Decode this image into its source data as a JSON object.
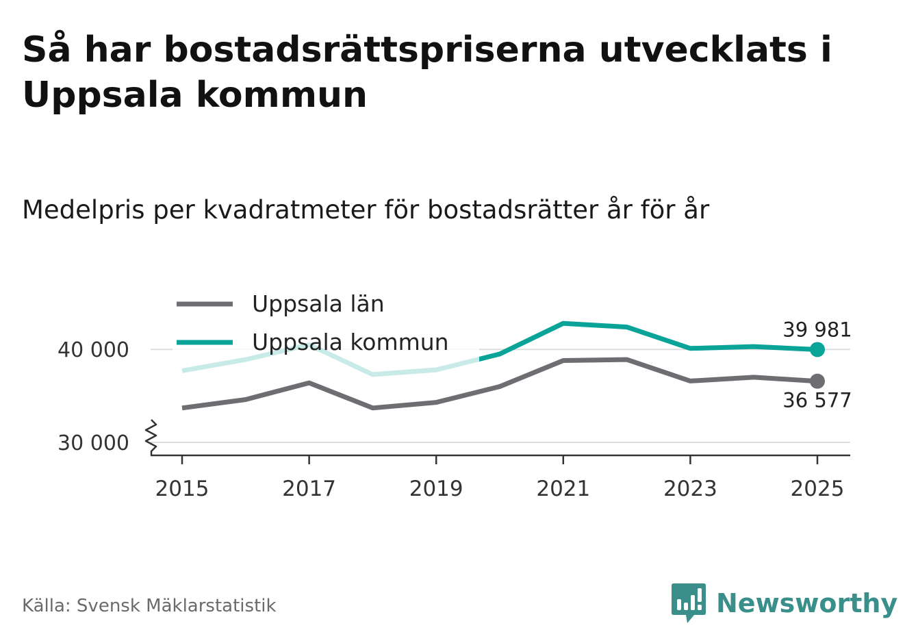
{
  "title": "Så har bostadsrättspriserna utvecklats i Uppsala kommun",
  "subtitle": "Medelpris per kvadratmeter för bostadsrätter år för år",
  "source": "Källa: Svensk Mäklarstatistik",
  "brand": {
    "name": "Newsworthy",
    "logo_icon": "bar-chart-speech-bubble-icon",
    "color": "#3a8f8b"
  },
  "chart_data": {
    "type": "line",
    "x": [
      2015,
      2016,
      2017,
      2018,
      2019,
      2020,
      2021,
      2022,
      2023,
      2024,
      2025
    ],
    "xticks": [
      "2015",
      "2017",
      "2019",
      "2021",
      "2023",
      "2025"
    ],
    "yticks": [
      {
        "value": 30000,
        "label": "30 000"
      },
      {
        "value": 40000,
        "label": "40 000"
      }
    ],
    "ylim": [
      28600,
      40900
    ],
    "axis_break": true,
    "grid": true,
    "legend_position": "top-left",
    "series": [
      {
        "name": "Uppsala län",
        "color": "#6e6d72",
        "values": [
          33700,
          34600,
          36400,
          33700,
          34300,
          36000,
          38800,
          38900,
          36600,
          37000,
          36577
        ],
        "end_label": "36 577",
        "end_label_position": "below"
      },
      {
        "name": "Uppsala kommun",
        "color": "#0aa398",
        "values": [
          37700,
          38900,
          40500,
          37300,
          37800,
          39500,
          42800,
          42400,
          40100,
          40300,
          39981
        ],
        "end_label": "39 981",
        "end_label_position": "above"
      }
    ],
    "title": "Så har bostadsrättspriserna utvecklats i Uppsala kommun",
    "ylabel": "",
    "xlabel": ""
  }
}
